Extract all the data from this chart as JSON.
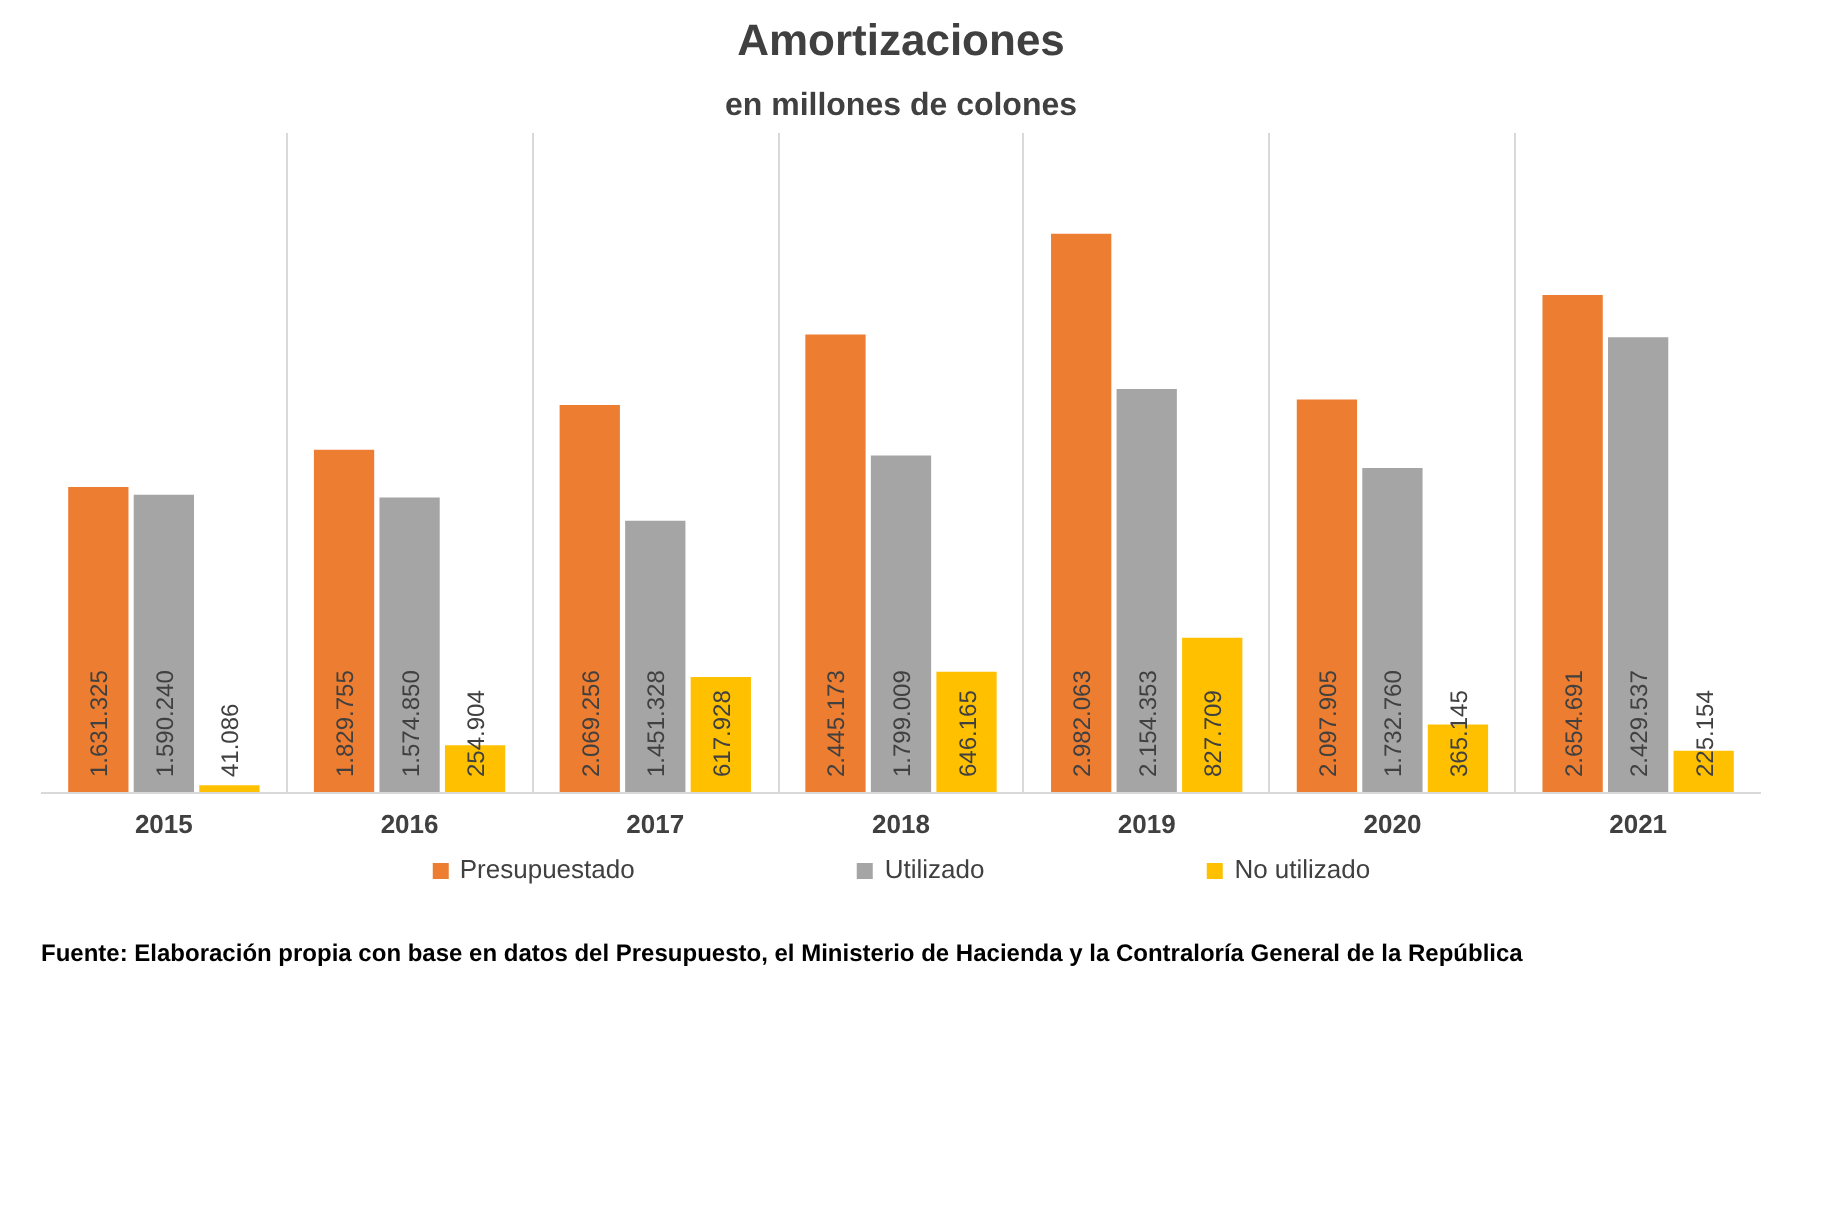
{
  "chart_data": {
    "type": "bar",
    "title": "Amortizaciones",
    "subtitle": "en millones de colones",
    "categories": [
      "2015",
      "2016",
      "2017",
      "2018",
      "2019",
      "2020",
      "2021"
    ],
    "series": [
      {
        "name": "Presupuestado",
        "color": "#ed7d31",
        "values": [
          1631325,
          1829755,
          2069256,
          2445173,
          2982063,
          2097905,
          2654691
        ],
        "value_labels": [
          "1.631.325",
          "1.829.755",
          "2.069.256",
          "2.445.173",
          "2.982.063",
          "2.097.905",
          "2.654.691"
        ]
      },
      {
        "name": "Utilizado",
        "color": "#a5a5a5",
        "values": [
          1590240,
          1574850,
          1451328,
          1799009,
          2154353,
          1732760,
          2429537
        ],
        "value_labels": [
          "1.590.240",
          "1.574.850",
          "1.451.328",
          "1.799.009",
          "2.154.353",
          "1.732.760",
          "2.429.537"
        ]
      },
      {
        "name": "No utilizado",
        "color": "#ffc000",
        "values": [
          41086,
          254904,
          617928,
          646165,
          827709,
          365145,
          225154
        ],
        "value_labels": [
          "41.086",
          "254.904",
          "617.928",
          "646.165",
          "827.709",
          "365.145",
          "225.154"
        ]
      }
    ],
    "grid": "x",
    "legend": "bottom",
    "annotations": [
      "Fuente: Elaboración propia con base en datos del Presupuesto, el Ministerio de Hacienda y la Contraloría General de la República"
    ]
  }
}
